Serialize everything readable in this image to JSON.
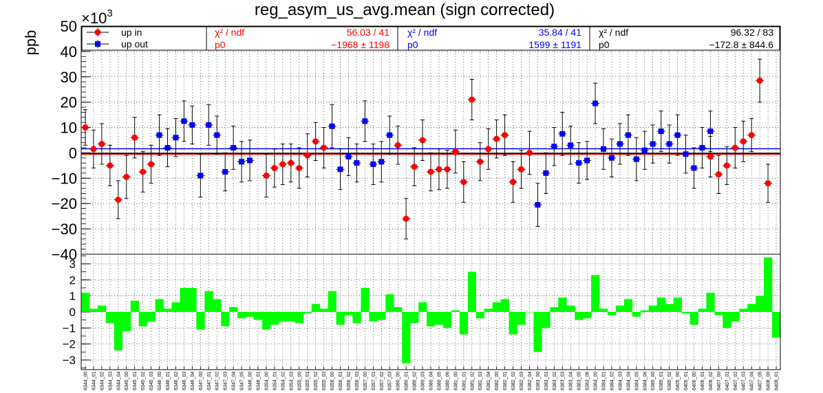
{
  "chart_data": {
    "type": "scatter",
    "title": "reg_asym_us_avg.mean (sign corrected)",
    "ylabel": "ppb",
    "y_multiplier": "×10",
    "y_multiplier_exp": "3",
    "ylim": [
      -40,
      50
    ],
    "yticks": [
      "50",
      "40",
      "30",
      "20",
      "10",
      "0",
      "−10",
      "−20",
      "−30",
      "−40"
    ],
    "categories": [
      "6344_00",
      "6344_01",
      "6344_02",
      "6344_03",
      "6344_04",
      "6345_00",
      "6345_01",
      "6345_02",
      "6345_03",
      "6346_00",
      "6346_01",
      "6346_02",
      "6346_03",
      "6346_04",
      "6347_00",
      "6347_01",
      "6347_02",
      "6347_03",
      "6347_04",
      "6347_05",
      "6348_00",
      "6348_01",
      "6354_00",
      "6354_01",
      "6354_02",
      "6354_03",
      "6355_00",
      "6355_01",
      "6355_02",
      "6355_03",
      "6356_00",
      "6356_01",
      "6356_02",
      "6356_03",
      "6357_00",
      "6357_01",
      "6357_02",
      "6357_03",
      "6380_00",
      "6380_01",
      "6380_02",
      "6380_03",
      "6380_04",
      "6380_05",
      "6380_06",
      "6381_00",
      "6381_01",
      "6381_02",
      "6381_03",
      "6381_04",
      "6382_00",
      "6382_01",
      "6382_02",
      "6382_03",
      "6382_04",
      "6383_00",
      "6383_01",
      "6383_02",
      "6383_03",
      "6383_04",
      "6383_05",
      "6383_06",
      "6384_00",
      "6384_01",
      "6384_02",
      "6384_03",
      "6384_04",
      "6384_05",
      "6384_06",
      "6385_00",
      "6385_01",
      "6385_02",
      "6405_00",
      "6405_01",
      "6406_00",
      "6406_01",
      "6406_02",
      "6407_00",
      "6407_01",
      "6407_02",
      "6407_03",
      "6407_04",
      "6407_05",
      "6408_00",
      "6408_01"
    ],
    "series": [
      {
        "name": "up in",
        "color": "#ff0000",
        "marker": "circle",
        "points": [
          {
            "i": 0,
            "y": 10.0,
            "err": 7.0
          },
          {
            "i": 1,
            "y": 1.5,
            "err": 7.5
          },
          {
            "i": 2,
            "y": 3.5,
            "err": 8.0
          },
          {
            "i": 3,
            "y": -5.0,
            "err": 8.0
          },
          {
            "i": 4,
            "y": -18.5,
            "err": 7.5
          },
          {
            "i": 5,
            "y": -9.5,
            "err": 8.5
          },
          {
            "i": 6,
            "y": 6.0,
            "err": 8.0
          },
          {
            "i": 7,
            "y": -7.5,
            "err": 8.0
          },
          {
            "i": 8,
            "y": -4.5,
            "err": 7.5
          },
          {
            "i": 22,
            "y": -9.0,
            "err": 8.5
          },
          {
            "i": 23,
            "y": -6.0,
            "err": 7.5
          },
          {
            "i": 24,
            "y": -4.5,
            "err": 8.0
          },
          {
            "i": 25,
            "y": -4.0,
            "err": 7.5
          },
          {
            "i": 26,
            "y": -6.0,
            "err": 8.0
          },
          {
            "i": 27,
            "y": -1.0,
            "err": 8.5
          },
          {
            "i": 28,
            "y": 4.5,
            "err": 7.5
          },
          {
            "i": 29,
            "y": 2.0,
            "err": 8.0
          },
          {
            "i": 38,
            "y": 3.0,
            "err": 7.5
          },
          {
            "i": 39,
            "y": -26.0,
            "err": 8.0
          },
          {
            "i": 40,
            "y": -5.5,
            "err": 7.5
          },
          {
            "i": 41,
            "y": 5.0,
            "err": 8.0
          },
          {
            "i": 42,
            "y": -7.5,
            "err": 7.5
          },
          {
            "i": 43,
            "y": -6.5,
            "err": 8.0
          },
          {
            "i": 44,
            "y": -6.5,
            "err": 7.5
          },
          {
            "i": 45,
            "y": 0.5,
            "err": 8.5
          },
          {
            "i": 46,
            "y": -11.5,
            "err": 8.0
          },
          {
            "i": 47,
            "y": 21.0,
            "err": 8.0
          },
          {
            "i": 48,
            "y": -3.5,
            "err": 7.5
          },
          {
            "i": 49,
            "y": 1.5,
            "err": 8.0
          },
          {
            "i": 50,
            "y": 5.5,
            "err": 7.5
          },
          {
            "i": 51,
            "y": 7.0,
            "err": 8.0
          },
          {
            "i": 52,
            "y": -11.5,
            "err": 8.0
          },
          {
            "i": 53,
            "y": -6.5,
            "err": 7.5
          },
          {
            "i": 54,
            "y": 0.0,
            "err": 8.5
          },
          {
            "i": 76,
            "y": -1.5,
            "err": 8.0
          },
          {
            "i": 77,
            "y": -8.5,
            "err": 7.5
          },
          {
            "i": 78,
            "y": -5.0,
            "err": 7.5
          },
          {
            "i": 79,
            "y": 2.0,
            "err": 8.0
          },
          {
            "i": 80,
            "y": 4.5,
            "err": 8.0
          },
          {
            "i": 81,
            "y": 7.0,
            "err": 6.5
          },
          {
            "i": 82,
            "y": 28.5,
            "err": 8.5
          },
          {
            "i": 83,
            "y": -12.0,
            "err": 7.5
          }
        ]
      },
      {
        "name": "up out",
        "color": "#0000ff",
        "marker": "square",
        "points": [
          {
            "i": 9,
            "y": 7.0,
            "err": 8.0
          },
          {
            "i": 10,
            "y": 2.0,
            "err": 7.5
          },
          {
            "i": 11,
            "y": 6.0,
            "err": 7.5
          },
          {
            "i": 12,
            "y": 12.5,
            "err": 8.0
          },
          {
            "i": 13,
            "y": 11.0,
            "err": 7.5
          },
          {
            "i": 14,
            "y": -9.0,
            "err": 8.5
          },
          {
            "i": 15,
            "y": 11.0,
            "err": 8.0
          },
          {
            "i": 16,
            "y": 7.0,
            "err": 7.5
          },
          {
            "i": 17,
            "y": -7.5,
            "err": 7.5
          },
          {
            "i": 18,
            "y": 2.0,
            "err": 8.5
          },
          {
            "i": 19,
            "y": -3.5,
            "err": 8.0
          },
          {
            "i": 20,
            "y": -3.0,
            "err": 8.0
          },
          {
            "i": 30,
            "y": 10.5,
            "err": 8.5
          },
          {
            "i": 31,
            "y": -6.5,
            "err": 8.0
          },
          {
            "i": 32,
            "y": -1.5,
            "err": 7.5
          },
          {
            "i": 33,
            "y": -4.0,
            "err": 7.5
          },
          {
            "i": 34,
            "y": 12.5,
            "err": 8.0
          },
          {
            "i": 35,
            "y": -4.5,
            "err": 8.0
          },
          {
            "i": 36,
            "y": -3.5,
            "err": 8.0
          },
          {
            "i": 37,
            "y": 7.0,
            "err": 7.5
          },
          {
            "i": 55,
            "y": -20.5,
            "err": 8.5
          },
          {
            "i": 56,
            "y": -8.0,
            "err": 8.0
          },
          {
            "i": 57,
            "y": 2.5,
            "err": 7.5
          },
          {
            "i": 58,
            "y": 7.5,
            "err": 8.5
          },
          {
            "i": 59,
            "y": 3.0,
            "err": 7.5
          },
          {
            "i": 60,
            "y": -4.0,
            "err": 8.0
          },
          {
            "i": 61,
            "y": -3.0,
            "err": 7.5
          },
          {
            "i": 62,
            "y": 19.5,
            "err": 8.0
          },
          {
            "i": 63,
            "y": 1.5,
            "err": 8.0
          },
          {
            "i": 64,
            "y": -2.0,
            "err": 7.5
          },
          {
            "i": 65,
            "y": 3.5,
            "err": 8.0
          },
          {
            "i": 66,
            "y": 7.0,
            "err": 8.0
          },
          {
            "i": 67,
            "y": -2.5,
            "err": 8.5
          },
          {
            "i": 68,
            "y": 1.0,
            "err": 7.5
          },
          {
            "i": 69,
            "y": 3.5,
            "err": 7.5
          },
          {
            "i": 70,
            "y": 8.5,
            "err": 8.0
          },
          {
            "i": 71,
            "y": 3.5,
            "err": 7.5
          },
          {
            "i": 72,
            "y": 7.0,
            "err": 8.0
          },
          {
            "i": 73,
            "y": -0.5,
            "err": 7.5
          },
          {
            "i": 74,
            "y": -6.0,
            "err": 8.0
          },
          {
            "i": 75,
            "y": 2.0,
            "err": 8.0
          },
          {
            "i": 76,
            "y": 8.5,
            "err": 8.0
          }
        ]
      }
    ],
    "fits": [
      {
        "color": "#ff0000",
        "y": -0.5,
        "chi2_label": "χ² / ndf",
        "chi2_value": "56.03 / 41",
        "p0_label": "p0",
        "p0_value": "−1968 ±  1198"
      },
      {
        "color": "#0000ff",
        "y": 1.6,
        "chi2_label": "χ² / ndf",
        "chi2_value": "35.84 / 41",
        "p0_label": "p0",
        "p0_value": "1599 ±  1191"
      },
      {
        "color": "#000000",
        "y": -0.17,
        "chi2_label": "χ² / ndf",
        "chi2_value": "96.32 / 83",
        "p0_label": "p0",
        "p0_value": "−172.8 ± 844.6"
      }
    ],
    "residual": {
      "type": "bar",
      "color": "#00ff00",
      "ylim": [
        -3.6,
        3.6
      ],
      "yticks": [
        "3",
        "2",
        "1",
        "0",
        "−1",
        "−2",
        "−3"
      ],
      "values": [
        1.2,
        0.2,
        0.4,
        -0.7,
        -2.4,
        -1.2,
        0.7,
        -0.9,
        -0.6,
        0.8,
        0.2,
        0.6,
        1.5,
        1.5,
        -1.1,
        1.3,
        0.8,
        -0.9,
        0.3,
        -0.4,
        -0.3,
        -0.5,
        -1.1,
        -0.8,
        -0.6,
        -0.6,
        -0.7,
        -0.1,
        0.5,
        0.2,
        1.3,
        -0.8,
        -0.2,
        -0.7,
        1.5,
        -0.6,
        -0.5,
        1.1,
        0.3,
        -3.2,
        -0.7,
        0.6,
        -0.9,
        -0.8,
        -1.0,
        0.1,
        -1.4,
        2.5,
        -0.4,
        0.2,
        0.6,
        0.8,
        -1.4,
        -0.8,
        0.0,
        -2.5,
        -1.0,
        0.3,
        0.9,
        0.4,
        -0.5,
        -0.4,
        2.3,
        0.2,
        -0.2,
        0.4,
        0.8,
        -0.3,
        0.1,
        0.4,
        0.9,
        0.5,
        0.9,
        -0.1,
        -0.8,
        0.2,
        1.2,
        -0.2,
        -1.0,
        -0.6,
        0.2,
        0.5,
        1.0,
        3.4,
        -1.6
      ]
    },
    "legend": {
      "placement": "top-left",
      "entries": [
        "up in",
        "up out"
      ]
    },
    "grid": true
  }
}
